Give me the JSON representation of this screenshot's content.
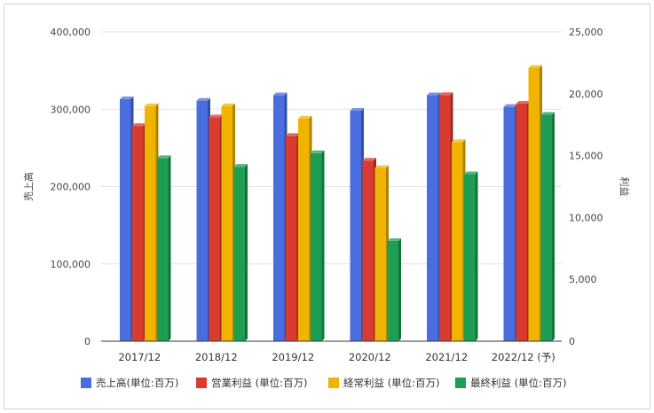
{
  "chart_data": {
    "type": "bar",
    "categories": [
      "2017/12",
      "2018/12",
      "2019/12",
      "2020/12",
      "2021/12",
      "2022/12 (予)"
    ],
    "y_left": {
      "label": "売上高",
      "lim": [
        0,
        400000
      ],
      "ticks": [
        0,
        100000,
        200000,
        300000,
        400000
      ],
      "tick_labels": [
        "0",
        "100,000",
        "200,000",
        "300,000",
        "400,000"
      ]
    },
    "y_right": {
      "label": "利益",
      "lim": [
        0,
        25000
      ],
      "ticks": [
        0,
        5000,
        10000,
        15000,
        20000,
        25000
      ],
      "tick_labels": [
        "0",
        "5,000",
        "10,000",
        "15,000",
        "20,000",
        "25,000"
      ]
    },
    "series": [
      {
        "name": "売上高(単位:百万)",
        "axis": "left",
        "color": "#4a6ee0",
        "values": [
          313000,
          311000,
          318000,
          298000,
          318000,
          303000
        ]
      },
      {
        "name": "営業利益 (単位:百万)",
        "axis": "right",
        "color": "#d93b30",
        "values": [
          17400,
          18100,
          16600,
          14600,
          19900,
          19200
        ]
      },
      {
        "name": "経常利益 (単位:百万)",
        "axis": "right",
        "color": "#f0b400",
        "values": [
          19000,
          19000,
          18000,
          14000,
          16100,
          22100
        ]
      },
      {
        "name": "最終利益 (単位:百万)",
        "axis": "right",
        "color": "#1e9e52",
        "values": [
          14800,
          14100,
          15200,
          8100,
          13500,
          18300
        ]
      }
    ],
    "grid": true,
    "legend_position": "bottom"
  }
}
